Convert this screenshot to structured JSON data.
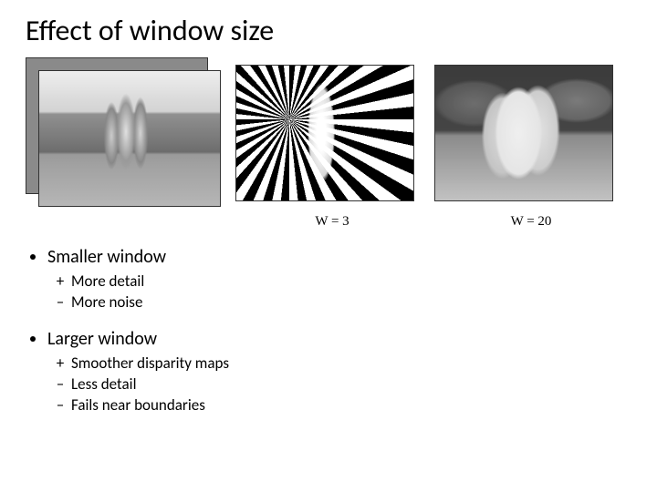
{
  "title": "Effect of window size",
  "captions": {
    "w3": "W = 3",
    "w20": "W = 20"
  },
  "smaller": {
    "heading": "Smaller window",
    "items": [
      {
        "sign": "+",
        "text": "More detail"
      },
      {
        "sign": "–",
        "text": "More noise"
      }
    ]
  },
  "larger": {
    "heading": "Larger window",
    "items": [
      {
        "sign": "+",
        "text": "Smoother disparity maps"
      },
      {
        "sign": "–",
        "text": "Less detail"
      },
      {
        "sign": "–",
        "text": "Fails near boundaries"
      }
    ]
  }
}
